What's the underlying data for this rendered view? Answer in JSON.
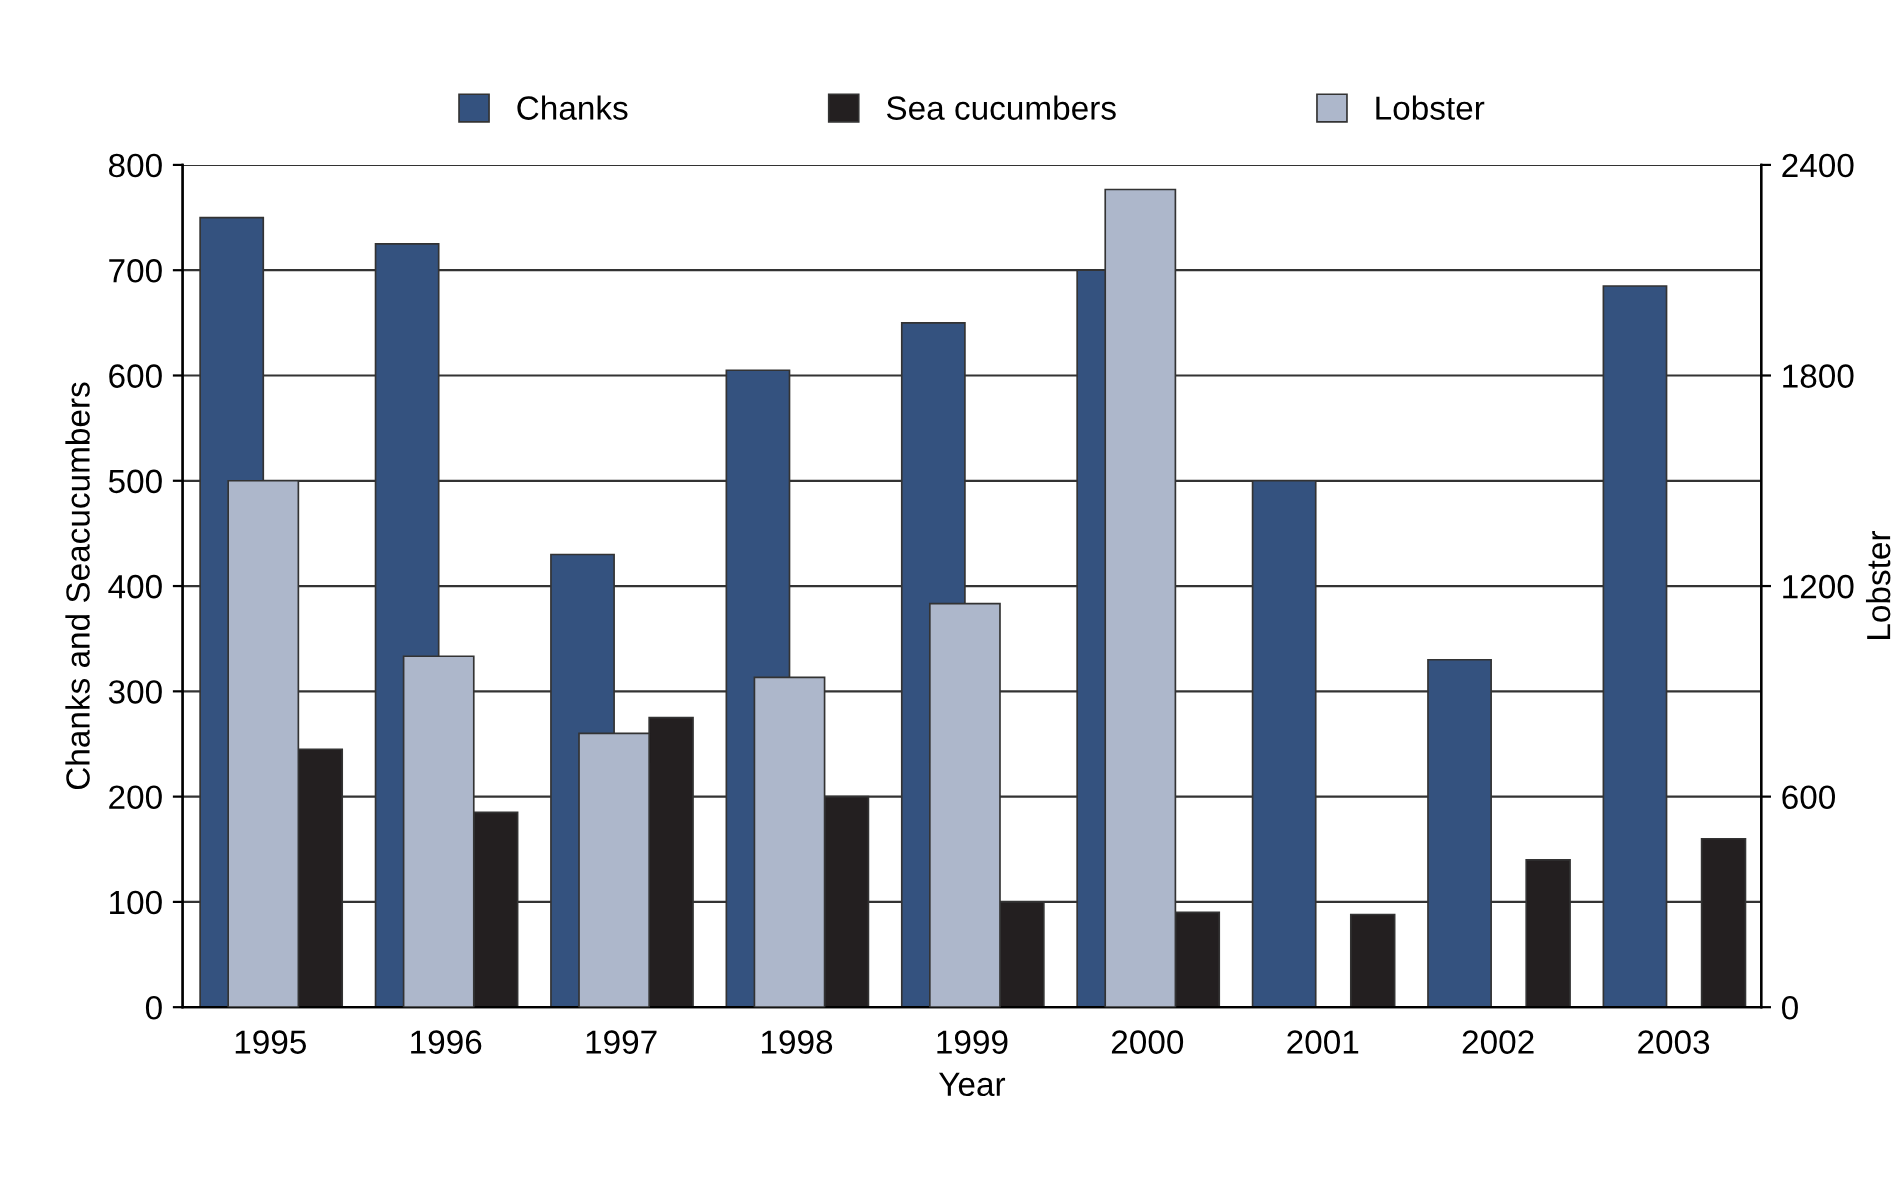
{
  "chart_data": {
    "type": "bar",
    "xlabel": "Year",
    "ylabel": "Chanks and Seacucumbers",
    "y2label": "Lobster",
    "categories": [
      "1995",
      "1996",
      "1997",
      "1998",
      "1999",
      "2000",
      "2001",
      "2002",
      "2003"
    ],
    "series": [
      {
        "name": "Chanks",
        "color": "#34527f",
        "values": [
          750,
          725,
          430,
          605,
          650,
          700,
          500,
          330,
          685
        ]
      },
      {
        "name": "Sea cucumbers",
        "color": "#231f20",
        "values": [
          245,
          185,
          275,
          200,
          100,
          90,
          88,
          140,
          160
        ]
      },
      {
        "name": "Lobster",
        "color": "#adb7cb",
        "axis": "y2",
        "values": [
          1500,
          1000,
          780,
          940,
          1150,
          2330,
          null,
          null,
          null
        ]
      }
    ],
    "ylim": [
      0,
      800
    ],
    "yticks": [
      0,
      100,
      200,
      300,
      400,
      500,
      600,
      700,
      800
    ],
    "y2lim": [
      0,
      2400
    ],
    "y2ticks": [
      0,
      600,
      1200,
      1800,
      2400
    ],
    "grid": "y",
    "legend": "top"
  }
}
